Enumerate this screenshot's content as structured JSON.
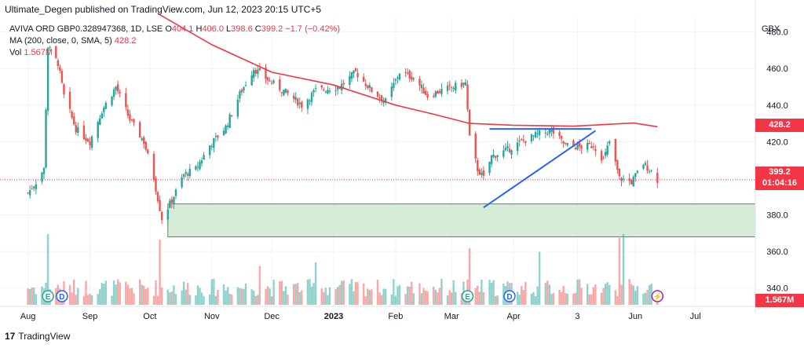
{
  "published_line": "Ultimate_Degen published on TradingView.com, Jun 12, 2023 20:15 UTC+5",
  "legend": {
    "symbol": "AVIVA ORD GBP0.328947368, 1D, LSE",
    "ohlc": [
      {
        "k": "O",
        "v": "404.1"
      },
      {
        "k": "H",
        "v": "406.0"
      },
      {
        "k": "L",
        "v": "398.6"
      },
      {
        "k": "C",
        "v": "399.2"
      }
    ],
    "change": "−1.7 (−0.42%)",
    "ma_label": "MA (200, close, 0, SMA, 5)",
    "ma_value": "428.2",
    "vol_label": "Vol",
    "vol_value": "1.567M"
  },
  "currency": "GBX",
  "badges": {
    "ma": "428.2",
    "price": "399.2",
    "countdown": "01:04:16",
    "volume": "1.567M"
  },
  "brand": "TradingView",
  "brand_mark": "17",
  "event_markers": [
    {
      "label": "E",
      "type": "earnings",
      "date": "2022-08-11"
    },
    {
      "label": "D",
      "type": "dividend",
      "date": "2022-08-18"
    },
    {
      "label": "E",
      "type": "earnings",
      "date": "2023-03-09"
    },
    {
      "label": "D",
      "type": "dividend",
      "date": "2023-03-30"
    },
    {
      "label": "⚡",
      "type": "split",
      "date": "2023-06-12"
    }
  ],
  "colors": {
    "up": "#26a69a",
    "down": "#ef5350",
    "ma": "#f23645",
    "trend": "#2962ff",
    "zone": "#c8e6c9",
    "zone_border": "#43a047"
  },
  "chart_data": {
    "type": "candlestick",
    "x_ticks": [
      "Aug",
      "Sep",
      "Oct",
      "Nov",
      "Dec",
      "2023",
      "Feb",
      "Mar",
      "Apr",
      "3",
      "Jun",
      "Jul"
    ],
    "x_tick_dates": [
      "2022-08-01",
      "2022-09-01",
      "2022-10-01",
      "2022-11-01",
      "2022-12-01",
      "2023-01-01",
      "2023-02-01",
      "2023-03-01",
      "2023-04-01",
      "2023-05-03",
      "2023-06-01",
      "2023-07-01"
    ],
    "y_ticks": [
      480.0,
      460.0,
      440.0,
      420.0,
      400.0,
      380.0,
      360.0,
      340.0
    ],
    "y_range": [
      330,
      488
    ],
    "last_close": 399.2,
    "ma200_points": [
      {
        "date": "2022-10-05",
        "value": 490
      },
      {
        "date": "2022-11-01",
        "value": 473
      },
      {
        "date": "2022-12-01",
        "value": 458
      },
      {
        "date": "2023-01-01",
        "value": 451
      },
      {
        "date": "2023-02-01",
        "value": 440
      },
      {
        "date": "2023-02-20",
        "value": 435
      },
      {
        "date": "2023-03-10",
        "value": 430
      },
      {
        "date": "2023-04-01",
        "value": 429
      },
      {
        "date": "2023-05-01",
        "value": 428.5
      },
      {
        "date": "2023-05-31",
        "value": 430.2
      },
      {
        "date": "2023-06-12",
        "value": 428.2
      }
    ],
    "trendlines": [
      {
        "from": {
          "date": "2023-03-20",
          "value": 427
        },
        "to": {
          "date": "2023-05-10",
          "value": 427
        }
      },
      {
        "from": {
          "date": "2023-03-17",
          "value": 384
        },
        "to": {
          "date": "2023-05-12",
          "value": 426
        }
      }
    ],
    "support_zone": {
      "from": "2022-10-10",
      "to": "2023-07-31",
      "low": 368,
      "high": 386
    },
    "price_anchors": [
      {
        "date": "2022-08-01",
        "value": 392
      },
      {
        "date": "2022-08-05",
        "value": 398
      },
      {
        "date": "2022-08-09",
        "value": 405
      },
      {
        "date": "2022-08-11",
        "value": 472
      },
      {
        "date": "2022-08-16",
        "value": 463
      },
      {
        "date": "2022-08-19",
        "value": 445
      },
      {
        "date": "2022-08-25",
        "value": 427
      },
      {
        "date": "2022-09-01",
        "value": 420
      },
      {
        "date": "2022-09-07",
        "value": 437
      },
      {
        "date": "2022-09-14",
        "value": 450
      },
      {
        "date": "2022-09-21",
        "value": 432
      },
      {
        "date": "2022-09-28",
        "value": 420
      },
      {
        "date": "2022-10-03",
        "value": 400
      },
      {
        "date": "2022-10-07",
        "value": 378
      },
      {
        "date": "2022-10-12",
        "value": 388
      },
      {
        "date": "2022-10-18",
        "value": 402
      },
      {
        "date": "2022-10-24",
        "value": 405
      },
      {
        "date": "2022-10-31",
        "value": 418
      },
      {
        "date": "2022-11-08",
        "value": 428
      },
      {
        "date": "2022-11-15",
        "value": 446
      },
      {
        "date": "2022-11-22",
        "value": 460
      },
      {
        "date": "2022-11-30",
        "value": 453
      },
      {
        "date": "2022-12-08",
        "value": 447
      },
      {
        "date": "2022-12-16",
        "value": 440
      },
      {
        "date": "2022-12-23",
        "value": 448
      },
      {
        "date": "2023-01-04",
        "value": 450
      },
      {
        "date": "2023-01-12",
        "value": 458
      },
      {
        "date": "2023-01-20",
        "value": 448
      },
      {
        "date": "2023-01-27",
        "value": 442
      },
      {
        "date": "2023-02-03",
        "value": 458
      },
      {
        "date": "2023-02-10",
        "value": 455
      },
      {
        "date": "2023-02-17",
        "value": 445
      },
      {
        "date": "2023-02-24",
        "value": 448
      },
      {
        "date": "2023-03-02",
        "value": 450
      },
      {
        "date": "2023-03-08",
        "value": 452
      },
      {
        "date": "2023-03-10",
        "value": 422
      },
      {
        "date": "2023-03-14",
        "value": 405
      },
      {
        "date": "2023-03-17",
        "value": 400
      },
      {
        "date": "2023-03-21",
        "value": 412
      },
      {
        "date": "2023-03-28",
        "value": 415
      },
      {
        "date": "2023-04-05",
        "value": 420
      },
      {
        "date": "2023-04-13",
        "value": 424
      },
      {
        "date": "2023-04-20",
        "value": 426
      },
      {
        "date": "2023-04-27",
        "value": 418
      },
      {
        "date": "2023-05-04",
        "value": 417
      },
      {
        "date": "2023-05-11",
        "value": 418
      },
      {
        "date": "2023-05-16",
        "value": 410
      },
      {
        "date": "2023-05-19",
        "value": 420
      },
      {
        "date": "2023-05-24",
        "value": 400
      },
      {
        "date": "2023-05-30",
        "value": 398
      },
      {
        "date": "2023-06-05",
        "value": 408
      },
      {
        "date": "2023-06-09",
        "value": 404
      },
      {
        "date": "2023-06-12",
        "value": 399.2
      }
    ],
    "volume_spikes": [
      {
        "date": "2022-08-11",
        "value": 1.0
      },
      {
        "date": "2022-10-06",
        "value": 0.92
      },
      {
        "date": "2022-11-25",
        "value": 0.55
      },
      {
        "date": "2022-12-23",
        "value": 0.6
      },
      {
        "date": "2023-03-10",
        "value": 0.8
      },
      {
        "date": "2023-04-14",
        "value": 0.75
      },
      {
        "date": "2023-05-24",
        "value": 0.95
      },
      {
        "date": "2023-05-26",
        "value": 1.0
      }
    ]
  }
}
